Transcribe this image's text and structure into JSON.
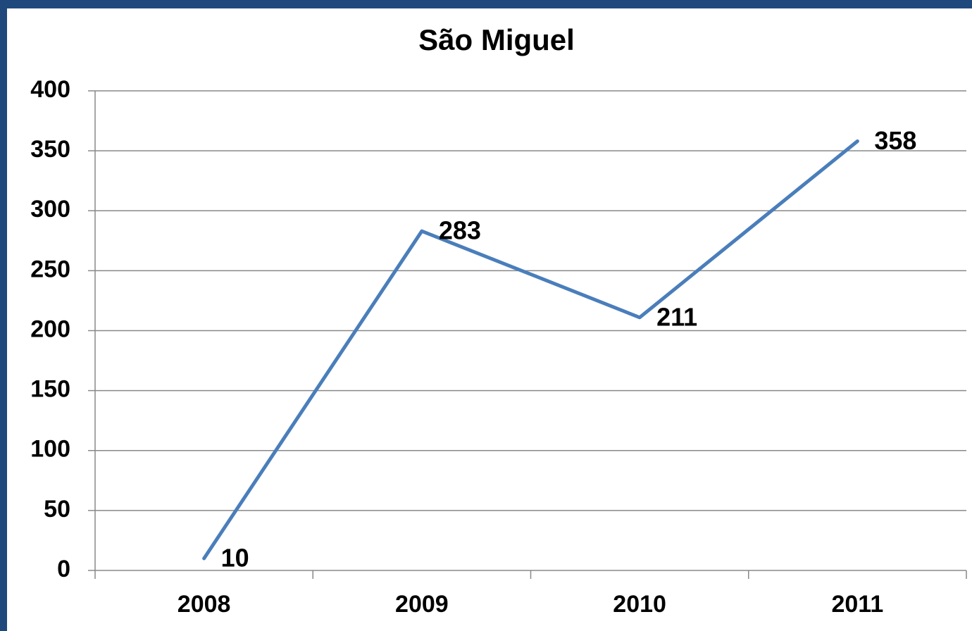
{
  "chart_data": {
    "type": "line",
    "title": "São Miguel",
    "categories": [
      "2008",
      "2009",
      "2010",
      "2011"
    ],
    "series": [
      {
        "name": "São Miguel",
        "color": "#4a7ebb",
        "values": [
          10,
          283,
          211,
          358
        ]
      }
    ],
    "ylim": [
      0,
      400
    ],
    "yticks": [
      0,
      50,
      100,
      150,
      200,
      250,
      300,
      350,
      400
    ],
    "grid": true
  }
}
